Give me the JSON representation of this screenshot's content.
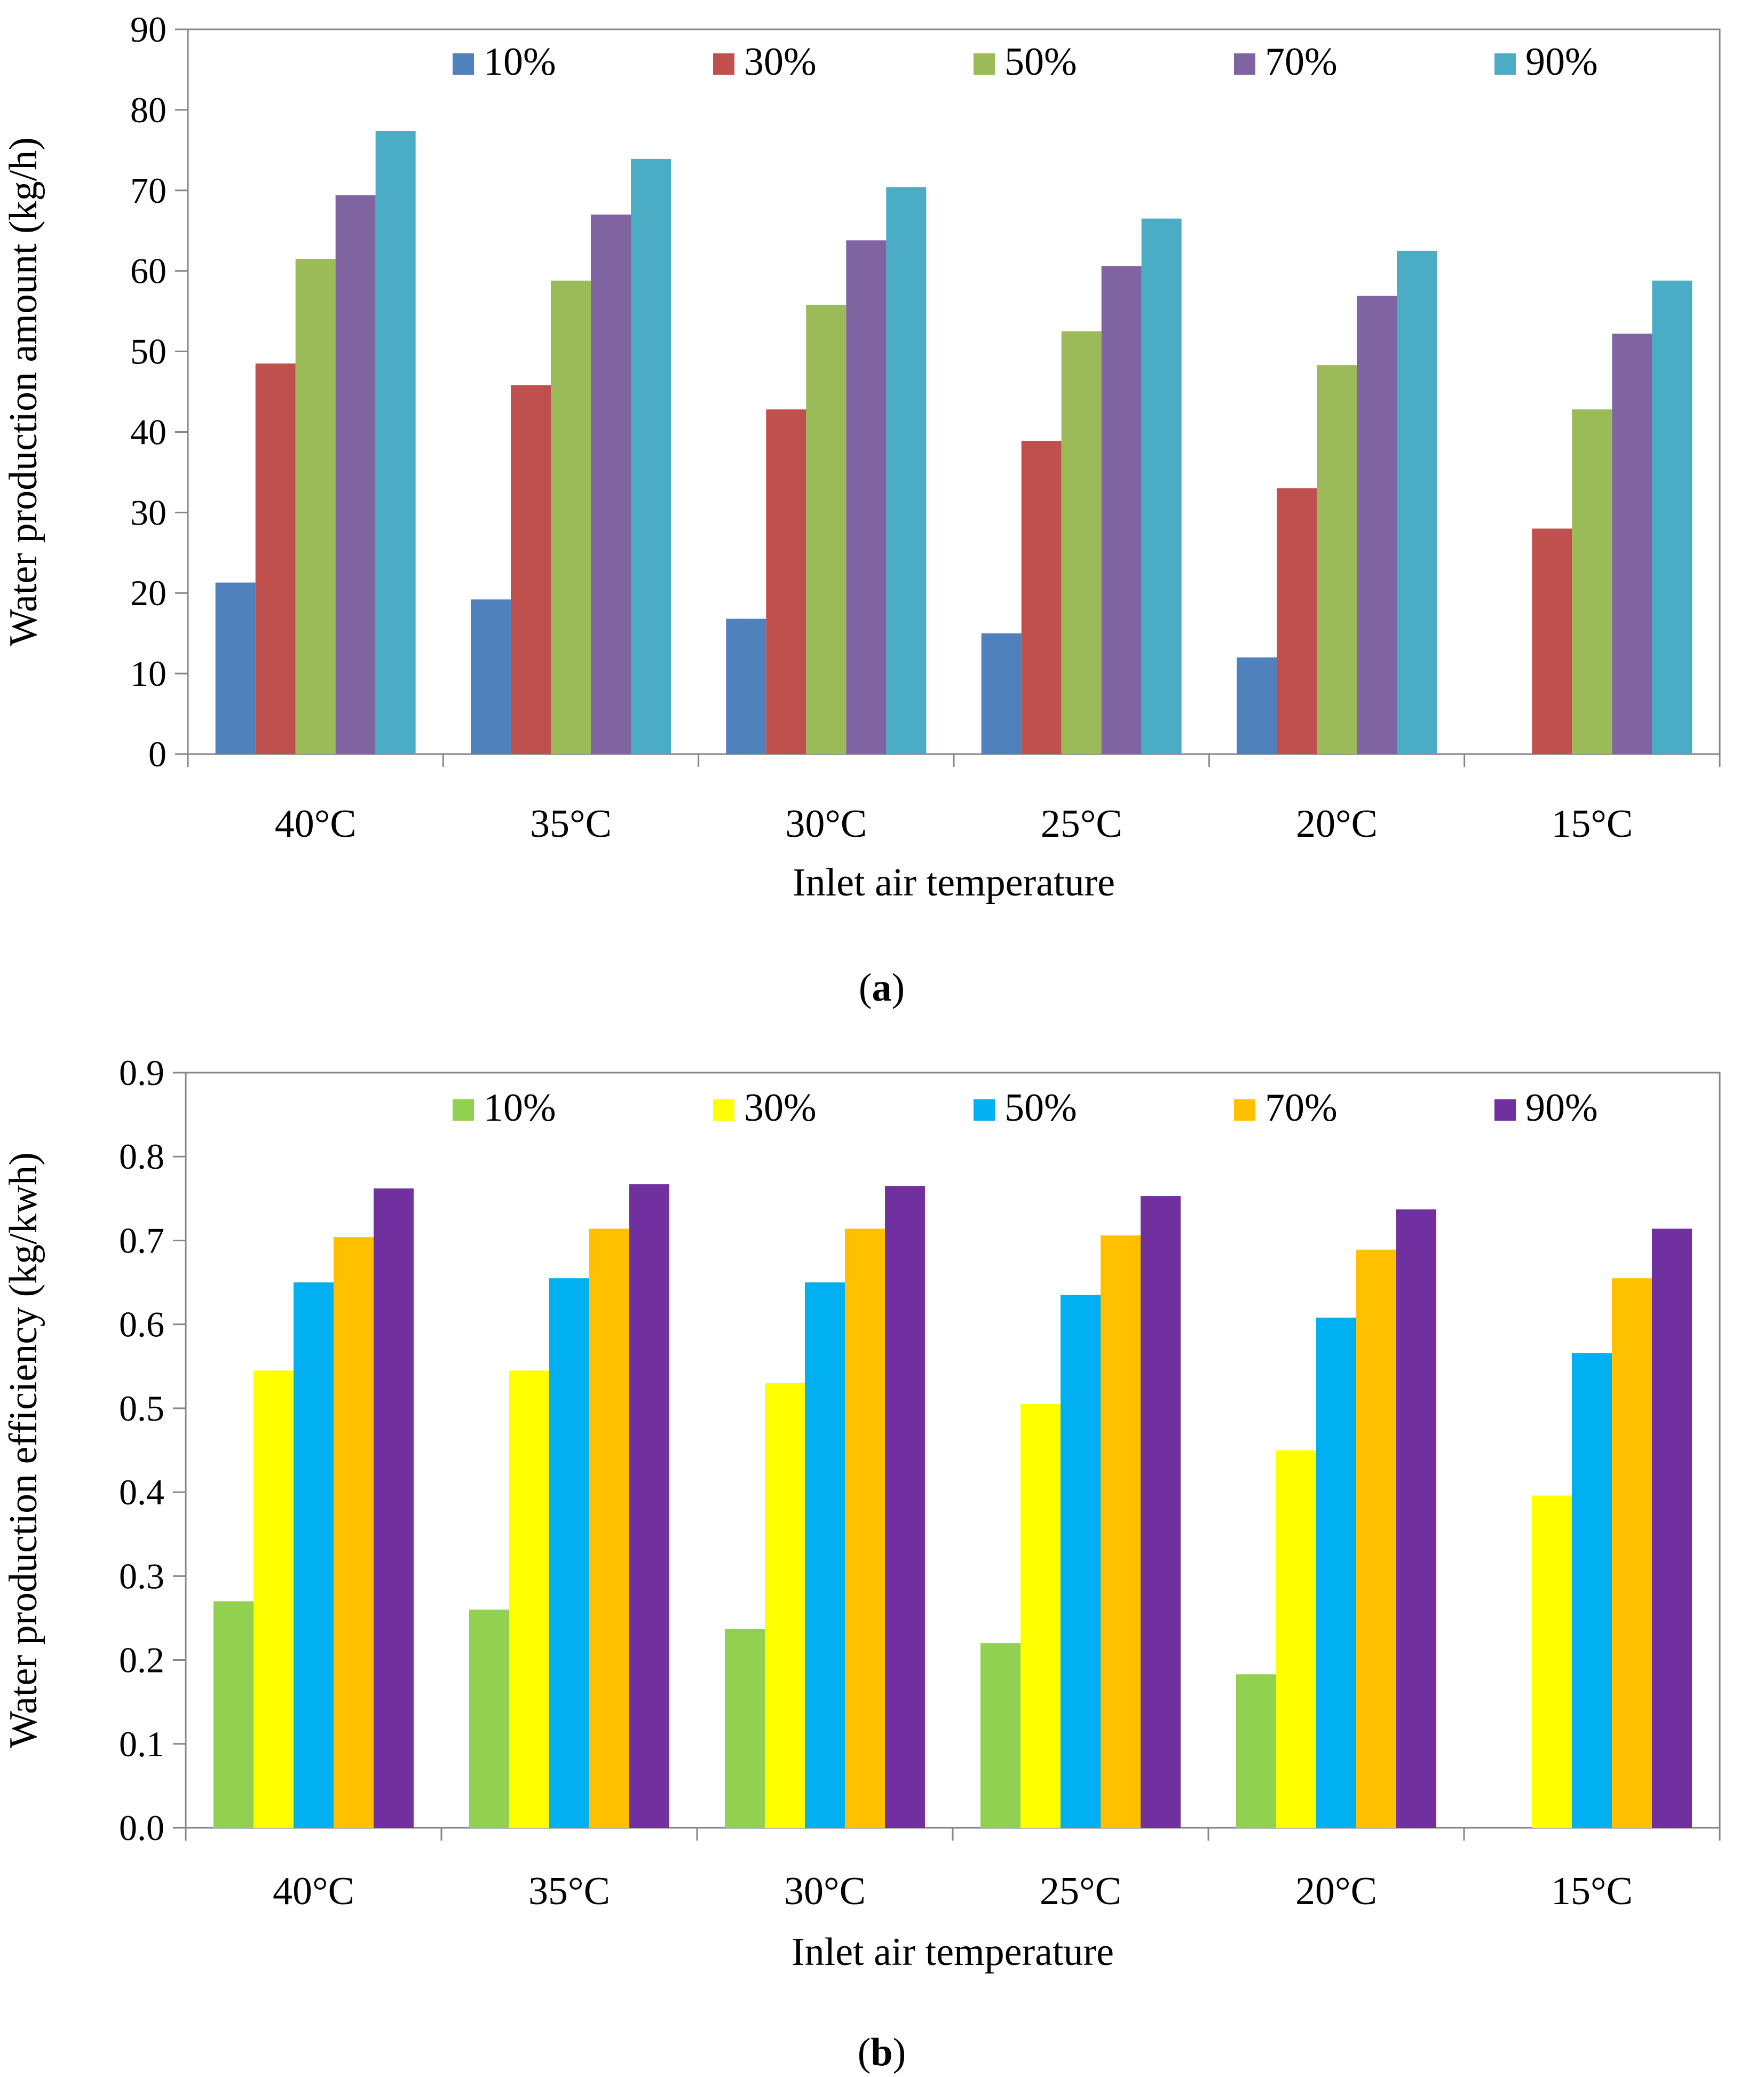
{
  "chart_data": [
    {
      "type": "bar",
      "title": "",
      "panel_label": "a",
      "xlabel": "Inlet air temperature",
      "ylabel": "Water production amount (kg/h)",
      "ylim": [
        0,
        90
      ],
      "yticks": [
        "0",
        "10",
        "20",
        "30",
        "40",
        "50",
        "60",
        "70",
        "80",
        "90"
      ],
      "categories": [
        "40°C",
        "35°C",
        "30°C",
        "25°C",
        "20°C",
        "15°C"
      ],
      "legend_position": "top-center",
      "grid": false,
      "series": [
        {
          "name": "10%",
          "color": "#4F81BD",
          "values": [
            21.3,
            19.2,
            16.8,
            15.0,
            12.0,
            0
          ]
        },
        {
          "name": "30%",
          "color": "#C0504D",
          "values": [
            48.5,
            45.8,
            42.8,
            38.9,
            33.0,
            28.0
          ]
        },
        {
          "name": "50%",
          "color": "#9BBB59",
          "values": [
            61.5,
            58.8,
            55.8,
            52.5,
            48.3,
            42.8
          ]
        },
        {
          "name": "70%",
          "color": "#8064A2",
          "values": [
            69.4,
            67.0,
            63.8,
            60.6,
            56.9,
            52.2
          ]
        },
        {
          "name": "90%",
          "color": "#4BACC6",
          "values": [
            77.4,
            73.9,
            70.4,
            66.5,
            62.5,
            58.8
          ]
        }
      ]
    },
    {
      "type": "bar",
      "title": "",
      "panel_label": "b",
      "xlabel": "Inlet air temperature",
      "ylabel": "Water production efficiency  (kg/kwh)",
      "ylim": [
        0,
        0.9
      ],
      "yticks": [
        "0.0",
        "0.1",
        "0.2",
        "0.3",
        "0.4",
        "0.5",
        "0.6",
        "0.7",
        "0.8",
        "0.9"
      ],
      "categories": [
        "40°C",
        "35°C",
        "30°C",
        "25°C",
        "20°C",
        "15°C"
      ],
      "legend_position": "top-center",
      "grid": false,
      "series": [
        {
          "name": "10%",
          "color": "#92D050",
          "values": [
            0.27,
            0.26,
            0.237,
            0.22,
            0.183,
            0
          ]
        },
        {
          "name": "30%",
          "color": "#FFFF00",
          "values": [
            0.545,
            0.545,
            0.53,
            0.505,
            0.45,
            0.396
          ]
        },
        {
          "name": "50%",
          "color": "#00B0F0",
          "values": [
            0.65,
            0.655,
            0.65,
            0.635,
            0.608,
            0.566
          ]
        },
        {
          "name": "70%",
          "color": "#FFC000",
          "values": [
            0.704,
            0.714,
            0.714,
            0.706,
            0.689,
            0.655
          ]
        },
        {
          "name": "90%",
          "color": "#7030A0",
          "values": [
            0.762,
            0.767,
            0.765,
            0.753,
            0.737,
            0.714
          ]
        }
      ]
    }
  ],
  "captions": [
    {
      "open": "(",
      "label": "a",
      "close": ")"
    },
    {
      "open": "(",
      "label": "b",
      "close": ")"
    }
  ]
}
